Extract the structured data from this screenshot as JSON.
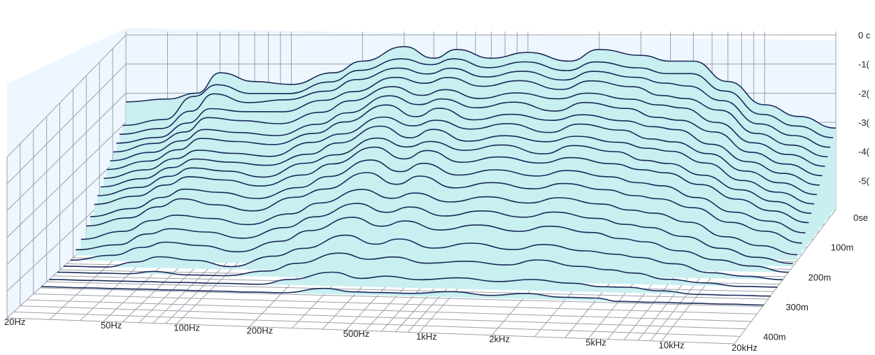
{
  "chart_data": {
    "type": "area",
    "title": "",
    "xlabel": "",
    "ylabel": "",
    "zlabel": "",
    "x_scale": "log",
    "x_range": [
      20,
      20000
    ],
    "x_ticks": [
      {
        "value": 20,
        "label": "20Hz"
      },
      {
        "value": 50,
        "label": "50Hz"
      },
      {
        "value": 100,
        "label": "100Hz"
      },
      {
        "value": 200,
        "label": "200Hz"
      },
      {
        "value": 500,
        "label": "500Hz"
      },
      {
        "value": 1000,
        "label": "1kHz"
      },
      {
        "value": 2000,
        "label": "2kHz"
      },
      {
        "value": 5000,
        "label": "5kHz"
      },
      {
        "value": 10000,
        "label": "10kHz"
      },
      {
        "value": 20000,
        "label": "20kHz"
      }
    ],
    "z_ticks": [
      {
        "value": 0,
        "label": "0se"
      },
      {
        "value": 100,
        "label": "100m"
      },
      {
        "value": 200,
        "label": "200m"
      },
      {
        "value": 300,
        "label": "300m"
      },
      {
        "value": 400,
        "label": "400m"
      }
    ],
    "z_range": [
      0,
      450
    ],
    "y_ticks": [
      {
        "value": 0,
        "label": "0 c"
      },
      {
        "value": -10,
        "label": "-1("
      },
      {
        "value": -20,
        "label": "-2("
      },
      {
        "value": -30,
        "label": "-3("
      },
      {
        "value": -40,
        "label": "-4("
      },
      {
        "value": -50,
        "label": "-5("
      }
    ],
    "y_range": [
      -60,
      0
    ],
    "grid": true,
    "colors": {
      "fill": "#c9eff1",
      "line": "#1b2a5a",
      "grid": "#9aa0a8"
    },
    "x_points": [
      20,
      30,
      40,
      50,
      70,
      100,
      150,
      200,
      300,
      400,
      500,
      700,
      1000,
      1500,
      2000,
      3000,
      4000,
      5000,
      7000,
      10000,
      14000,
      20000
    ],
    "series": [
      {
        "z": 0,
        "values": [
          -23,
          -22,
          -20,
          -13,
          -16,
          -17,
          -13,
          -9,
          -4,
          -8,
          -5,
          -8,
          -6,
          -9,
          -5,
          -7,
          -9,
          -9,
          -16,
          -24,
          -28,
          -32
        ]
      },
      {
        "z": 12,
        "values": [
          -30,
          -28,
          -20,
          -16,
          -19,
          -19,
          -15,
          -11,
          -7,
          -9,
          -7,
          -10,
          -8,
          -11,
          -8,
          -10,
          -12,
          -12,
          -18,
          -26,
          -30,
          -34
        ]
      },
      {
        "z": 24,
        "values": [
          -32,
          -30,
          -24,
          -18,
          -21,
          -20,
          -17,
          -13,
          -9,
          -11,
          -9,
          -12,
          -10,
          -13,
          -10,
          -12,
          -14,
          -15,
          -20,
          -28,
          -32,
          -36
        ]
      },
      {
        "z": 36,
        "values": [
          -34,
          -32,
          -27,
          -22,
          -23,
          -23,
          -19,
          -16,
          -11,
          -13,
          -11,
          -14,
          -12,
          -15,
          -12,
          -14,
          -17,
          -18,
          -22,
          -30,
          -34,
          -38
        ]
      },
      {
        "z": 48,
        "values": [
          -36,
          -33,
          -29,
          -24,
          -25,
          -26,
          -22,
          -18,
          -13,
          -16,
          -14,
          -17,
          -15,
          -17,
          -15,
          -17,
          -19,
          -20,
          -25,
          -32,
          -36,
          -40
        ]
      },
      {
        "z": 60,
        "values": [
          -38,
          -35,
          -31,
          -27,
          -28,
          -29,
          -25,
          -21,
          -15,
          -18,
          -16,
          -19,
          -17,
          -20,
          -17,
          -19,
          -22,
          -23,
          -27,
          -34,
          -38,
          -42
        ]
      },
      {
        "z": 72,
        "values": [
          -40,
          -37,
          -33,
          -29,
          -30,
          -31,
          -27,
          -23,
          -17,
          -21,
          -18,
          -22,
          -20,
          -22,
          -20,
          -22,
          -24,
          -25,
          -30,
          -36,
          -40,
          -44
        ]
      },
      {
        "z": 84,
        "values": [
          -42,
          -39,
          -35,
          -32,
          -33,
          -34,
          -29,
          -26,
          -20,
          -23,
          -21,
          -24,
          -22,
          -25,
          -22,
          -24,
          -27,
          -28,
          -32,
          -38,
          -42,
          -46
        ]
      },
      {
        "z": 96,
        "values": [
          -44,
          -41,
          -37,
          -34,
          -35,
          -36,
          -32,
          -28,
          -22,
          -26,
          -23,
          -27,
          -25,
          -27,
          -25,
          -27,
          -29,
          -30,
          -34,
          -40,
          -44,
          -48
        ]
      },
      {
        "z": 108,
        "values": [
          -46,
          -43,
          -39,
          -36,
          -37,
          -39,
          -34,
          -31,
          -25,
          -28,
          -26,
          -29,
          -27,
          -30,
          -27,
          -29,
          -32,
          -33,
          -37,
          -42,
          -46,
          -50
        ]
      },
      {
        "z": 120,
        "values": [
          -48,
          -45,
          -41,
          -38,
          -39,
          -41,
          -37,
          -33,
          -27,
          -31,
          -28,
          -32,
          -30,
          -32,
          -30,
          -32,
          -34,
          -35,
          -39,
          -44,
          -48,
          -52
        ]
      },
      {
        "z": 135,
        "values": [
          -51,
          -48,
          -44,
          -41,
          -42,
          -44,
          -40,
          -36,
          -30,
          -34,
          -31,
          -35,
          -33,
          -35,
          -33,
          -35,
          -37,
          -38,
          -42,
          -47,
          -50,
          -54
        ]
      },
      {
        "z": 150,
        "values": [
          -53,
          -50,
          -46,
          -43,
          -45,
          -47,
          -42,
          -39,
          -33,
          -37,
          -34,
          -38,
          -36,
          -38,
          -36,
          -38,
          -40,
          -41,
          -44,
          -49,
          -52,
          -56
        ]
      },
      {
        "z": 170,
        "values": [
          -56,
          -53,
          -49,
          -47,
          -48,
          -50,
          -46,
          -42,
          -37,
          -40,
          -38,
          -41,
          -39,
          -41,
          -39,
          -41,
          -43,
          -44,
          -47,
          -52,
          -55,
          -58
        ]
      },
      {
        "z": 190,
        "values": [
          -58,
          -56,
          -52,
          -50,
          -51,
          -53,
          -49,
          -45,
          -40,
          -43,
          -41,
          -44,
          -42,
          -44,
          -42,
          -44,
          -46,
          -47,
          -50,
          -54,
          -57,
          -59
        ]
      },
      {
        "z": 210,
        "values": [
          -60,
          -58,
          -55,
          -53,
          -54,
          -56,
          -52,
          -48,
          -43,
          -46,
          -44,
          -47,
          -45,
          -47,
          -45,
          -47,
          -49,
          -50,
          -53,
          -56,
          -58,
          -60
        ]
      },
      {
        "z": 235,
        "values": [
          -60,
          -60,
          -58,
          -56,
          -57,
          -59,
          -55,
          -52,
          -47,
          -50,
          -48,
          -51,
          -49,
          -51,
          -49,
          -51,
          -52,
          -53,
          -55,
          -58,
          -59,
          -60
        ]
      },
      {
        "z": 260,
        "values": [
          -60,
          -60,
          -60,
          -59,
          -60,
          -60,
          -58,
          -55,
          -51,
          -53,
          -52,
          -54,
          -53,
          -54,
          -52,
          -54,
          -55,
          -56,
          -58,
          -59,
          -60,
          -60
        ]
      },
      {
        "z": 290,
        "values": [
          -60,
          -60,
          -60,
          -60,
          -60,
          -60,
          -60,
          -58,
          -55,
          -57,
          -56,
          -57,
          -56,
          -57,
          -56,
          -57,
          -58,
          -58,
          -59,
          -60,
          -60,
          -60
        ]
      },
      {
        "z": 320,
        "values": [
          -60,
          -60,
          -60,
          -60,
          -60,
          -60,
          -60,
          -60,
          -58,
          -59,
          -59,
          -59,
          -58,
          -59,
          -58,
          -59,
          -59,
          -60,
          -60,
          -60,
          -60,
          -60
        ]
      }
    ]
  }
}
